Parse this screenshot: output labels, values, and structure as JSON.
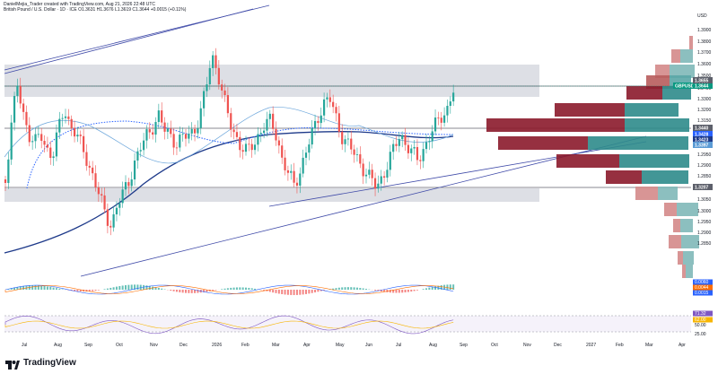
{
  "header": {
    "created_by": "DanielMejia_Trader created with TradingView.com, Aug 21, 2026 22:48 UTC",
    "symbol_line": "British Pound / U.S. Dollar · 1D · ICE  O1.3631  H1.3676  L1.3619  C1.3644  +0.0015 (+0.11%)"
  },
  "currency": "USD",
  "price_axis": [
    "1.3900",
    "1.3800",
    "1.3700",
    "1.3600",
    "1.3500",
    "1.3400",
    "1.3300",
    "1.3200",
    "1.3150",
    "1.3050",
    "1.3000",
    "1.2950",
    "1.2900",
    "1.2850"
  ],
  "price_tags": [
    {
      "label": "GBPUSD",
      "value": "1.3644",
      "color": "#089981"
    },
    {
      "label": "",
      "value": "1.3655",
      "color": "#5d606b"
    },
    {
      "label": "",
      "value": "1.3440",
      "color": "#5d606b"
    },
    {
      "label": "",
      "value": "1.3428",
      "color": "#2962ff"
    },
    {
      "label": "",
      "value": "1.3423",
      "color": "#1e3a8a"
    },
    {
      "label": "",
      "value": "1.3397",
      "color": "#5b9bd5"
    },
    {
      "label": "",
      "value": "1.3207",
      "color": "#5d606b"
    }
  ],
  "macd_axis": [
    "0.0060",
    "0.0044",
    "0.0015"
  ],
  "rsi_axis": [
    "71.32",
    "62.00",
    "50.00",
    "25.00"
  ],
  "time_axis": [
    "Jul",
    "Aug",
    "Sep",
    "Oct",
    "Nov",
    "Dec",
    "2026",
    "Feb",
    "Mar",
    "Apr",
    "May",
    "Jun",
    "Jul",
    "Aug",
    "Sep",
    "Oct",
    "Nov",
    "Dec",
    "2027",
    "Feb",
    "Mar",
    "Apr"
  ],
  "footer": {
    "brand": "TradingView"
  }
}
